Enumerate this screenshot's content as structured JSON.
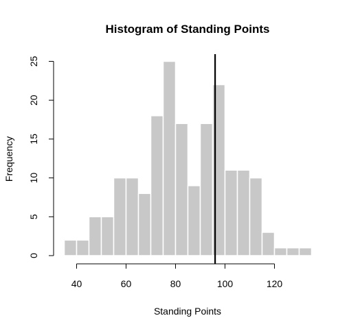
{
  "chart_data": {
    "type": "bar",
    "title": "Histogram of Standing Points",
    "xlabel": "Standing Points",
    "ylabel": "Frequency",
    "bin_width": 5,
    "bins": [
      {
        "start": 35,
        "end": 40,
        "count": 2
      },
      {
        "start": 40,
        "end": 45,
        "count": 2
      },
      {
        "start": 45,
        "end": 50,
        "count": 5
      },
      {
        "start": 50,
        "end": 55,
        "count": 5
      },
      {
        "start": 55,
        "end": 60,
        "count": 10
      },
      {
        "start": 60,
        "end": 65,
        "count": 10
      },
      {
        "start": 65,
        "end": 70,
        "count": 8
      },
      {
        "start": 70,
        "end": 75,
        "count": 18
      },
      {
        "start": 75,
        "end": 80,
        "count": 25
      },
      {
        "start": 80,
        "end": 85,
        "count": 17
      },
      {
        "start": 85,
        "end": 90,
        "count": 9
      },
      {
        "start": 90,
        "end": 95,
        "count": 17
      },
      {
        "start": 95,
        "end": 100,
        "count": 22
      },
      {
        "start": 100,
        "end": 105,
        "count": 11
      },
      {
        "start": 105,
        "end": 110,
        "count": 11
      },
      {
        "start": 110,
        "end": 115,
        "count": 10
      },
      {
        "start": 115,
        "end": 120,
        "count": 3
      },
      {
        "start": 120,
        "end": 125,
        "count": 1
      },
      {
        "start": 125,
        "end": 130,
        "count": 1
      },
      {
        "start": 130,
        "end": 135,
        "count": 1
      }
    ],
    "reference_line_x": 96,
    "xlim": [
      35,
      135
    ],
    "ylim": [
      0,
      25
    ],
    "x_ticks": [
      40,
      60,
      80,
      100,
      120
    ],
    "y_ticks": [
      0,
      5,
      10,
      15,
      20,
      25
    ],
    "grid": false,
    "colors": {
      "bar": "#c8c8c8",
      "bar_border": "#ffffff",
      "line": "#000000"
    }
  }
}
